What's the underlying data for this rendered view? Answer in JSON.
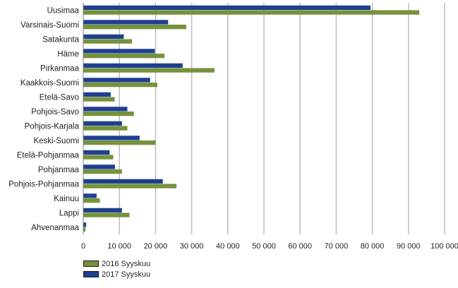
{
  "chart_data": {
    "type": "bar",
    "orientation": "horizontal",
    "categories": [
      "Uusimaa",
      "Varsinais-Suomi",
      "Satakunta",
      "Häme",
      "Pirkanmaa",
      "Kaakkois-Suomi",
      "Etelä-Savo",
      "Pohjois-Savo",
      "Pohjois-Karjala",
      "Keski-Suomi",
      "Etelä-Pohjanmaa",
      "Pohjanmaa",
      "Pohjois-Pohjanmaa",
      "Kainuu",
      "Lappi",
      "Ahvenanmaa"
    ],
    "series": [
      {
        "name": "2017 Syyskuu",
        "color": "#1f3f8f",
        "values": [
          79500,
          23500,
          11200,
          19800,
          27500,
          18500,
          7600,
          12200,
          10700,
          15600,
          7300,
          8800,
          22000,
          3700,
          10700,
          800
        ]
      },
      {
        "name": "2016 Syyskuu",
        "color": "#76923c",
        "values": [
          93000,
          28500,
          13500,
          22500,
          36300,
          20500,
          8700,
          14000,
          12200,
          20000,
          8300,
          10700,
          25800,
          4600,
          12800,
          600
        ]
      }
    ],
    "legend_order": [
      "2016 Syyskuu",
      "2017 Syyskuu"
    ],
    "xlim": [
      0,
      100000
    ],
    "xticks": [
      0,
      10000,
      20000,
      30000,
      40000,
      50000,
      60000,
      70000,
      80000,
      90000,
      100000
    ],
    "xtick_labels": [
      "0",
      "10 000",
      "20 000",
      "30 000",
      "40 000",
      "50 000",
      "60 000",
      "70 000",
      "80 000",
      "90 000",
      "100 000"
    ],
    "grid": true,
    "legend_position": "bottom-left"
  }
}
